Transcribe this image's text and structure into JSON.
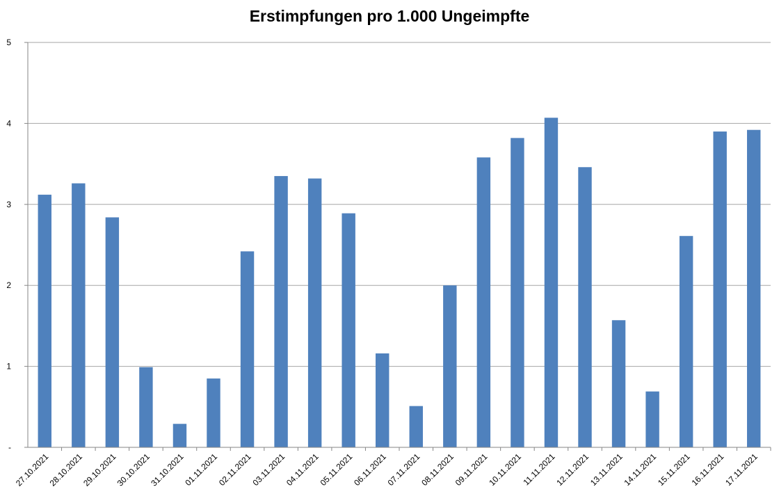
{
  "chart_data": {
    "type": "bar",
    "title": "Erstimpfungen pro 1.000 Ungeimpfte",
    "xlabel": "",
    "ylabel": "",
    "ylim": [
      0,
      5
    ],
    "y_ticks": [
      "-",
      "1",
      "2",
      "3",
      "4",
      "5"
    ],
    "grid": true,
    "legend": "none",
    "bar_color": "#4F81BD",
    "categories": [
      "27.10.2021",
      "28.10.2021",
      "29.10.2021",
      "30.10.2021",
      "31.10.2021",
      "01.11.2021",
      "02.11.2021",
      "03.11.2021",
      "04.11.2021",
      "05.11.2021",
      "06.11.2021",
      "07.11.2021",
      "08.11.2021",
      "09.11.2021",
      "10.11.2021",
      "11.11.2021",
      "12.11.2021",
      "13.11.2021",
      "14.11.2021",
      "15.11.2021",
      "16.11.2021",
      "17.11.2021"
    ],
    "values": [
      3.12,
      3.26,
      2.84,
      0.99,
      0.29,
      0.85,
      2.42,
      3.35,
      3.32,
      2.89,
      1.16,
      0.51,
      2.0,
      3.58,
      3.82,
      4.07,
      3.46,
      1.57,
      0.69,
      2.61,
      3.9,
      3.92
    ]
  }
}
